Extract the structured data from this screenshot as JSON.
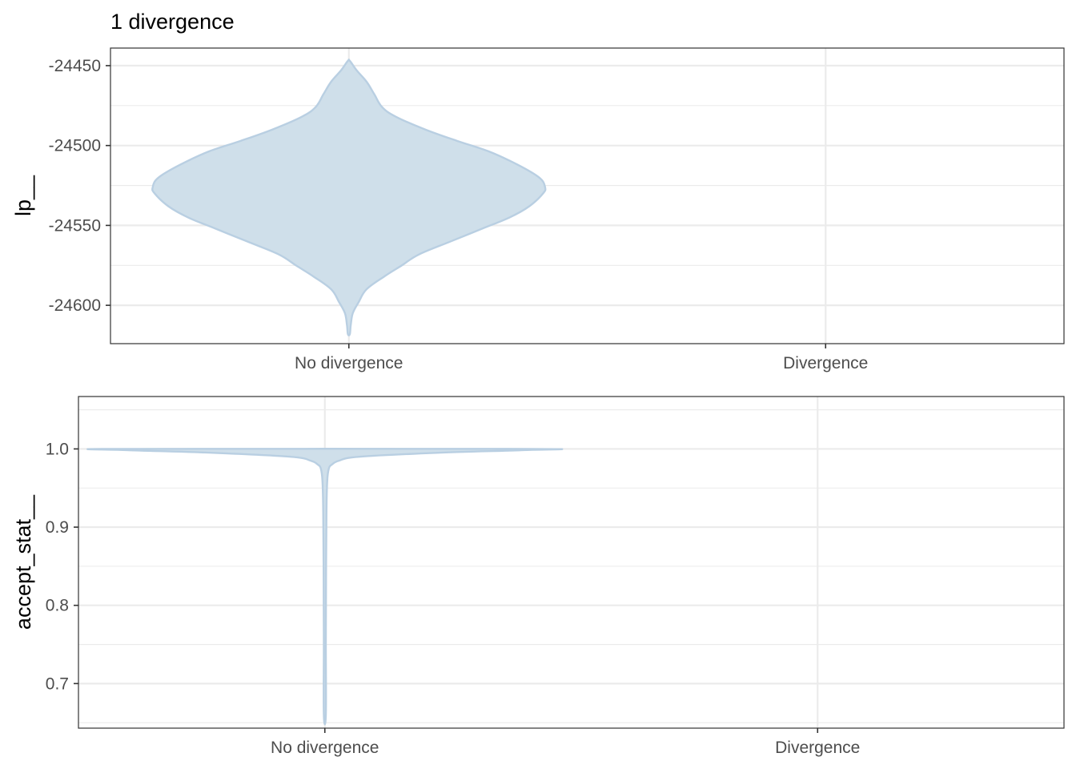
{
  "title": "1 divergence",
  "colors": {
    "violin_fill": "#cfdfea",
    "violin_line": "#b9cfe2",
    "grid": "#ebebeb",
    "frame": "#333333"
  },
  "chart_data": [
    {
      "type": "violin",
      "title": "1 divergence",
      "ylabel": "lp__",
      "xlabel": "",
      "categories": [
        "No divergence",
        "Divergence"
      ],
      "y_ticks": [
        -24450,
        -24500,
        -24550,
        -24600
      ],
      "y_tick_labels": [
        "-24450",
        "-24500",
        "-24550",
        "-24600"
      ],
      "ylim": [
        -24624,
        -24439
      ],
      "grid": true,
      "series": [
        {
          "category": "No divergence",
          "y_range": [
            -24618,
            -24447
          ],
          "density_profile": [
            [
              -24618,
              0.005
            ],
            [
              -24612,
              0.01
            ],
            [
              -24605,
              0.02
            ],
            [
              -24598,
              0.05
            ],
            [
              -24590,
              0.09
            ],
            [
              -24582,
              0.18
            ],
            [
              -24575,
              0.27
            ],
            [
              -24568,
              0.36
            ],
            [
              -24560,
              0.52
            ],
            [
              -24552,
              0.68
            ],
            [
              -24545,
              0.82
            ],
            [
              -24538,
              0.92
            ],
            [
              -24530,
              0.99
            ],
            [
              -24526,
              1.0
            ],
            [
              -24520,
              0.97
            ],
            [
              -24512,
              0.86
            ],
            [
              -24504,
              0.72
            ],
            [
              -24497,
              0.55
            ],
            [
              -24490,
              0.39
            ],
            [
              -24482,
              0.24
            ],
            [
              -24476,
              0.17
            ],
            [
              -24468,
              0.13
            ],
            [
              -24460,
              0.09
            ],
            [
              -24453,
              0.04
            ],
            [
              -24447,
              0.005
            ]
          ]
        },
        {
          "category": "Divergence",
          "y_range": null,
          "density_profile": []
        }
      ]
    },
    {
      "type": "violin",
      "title": "",
      "ylabel": "accept_stat__",
      "xlabel": "",
      "categories": [
        "No divergence",
        "Divergence"
      ],
      "y_ticks": [
        1.0,
        0.9,
        0.8,
        0.7
      ],
      "y_tick_labels": [
        "1.0",
        "0.9",
        "0.8",
        "0.7"
      ],
      "ylim": [
        0.643,
        1.067
      ],
      "grid": true,
      "series": [
        {
          "category": "No divergence",
          "y_range": [
            0.66,
            1.0
          ],
          "density_profile": [
            [
              0.66,
              0.005
            ],
            [
              0.75,
              0.005
            ],
            [
              0.85,
              0.006
            ],
            [
              0.92,
              0.008
            ],
            [
              0.96,
              0.012
            ],
            [
              0.975,
              0.02
            ],
            [
              0.98,
              0.035
            ],
            [
              0.985,
              0.07
            ],
            [
              0.99,
              0.17
            ],
            [
              0.995,
              0.55
            ],
            [
              0.9985,
              0.98
            ],
            [
              1.0,
              1.0
            ]
          ]
        },
        {
          "category": "Divergence",
          "y_range": null,
          "density_profile": []
        }
      ]
    }
  ]
}
